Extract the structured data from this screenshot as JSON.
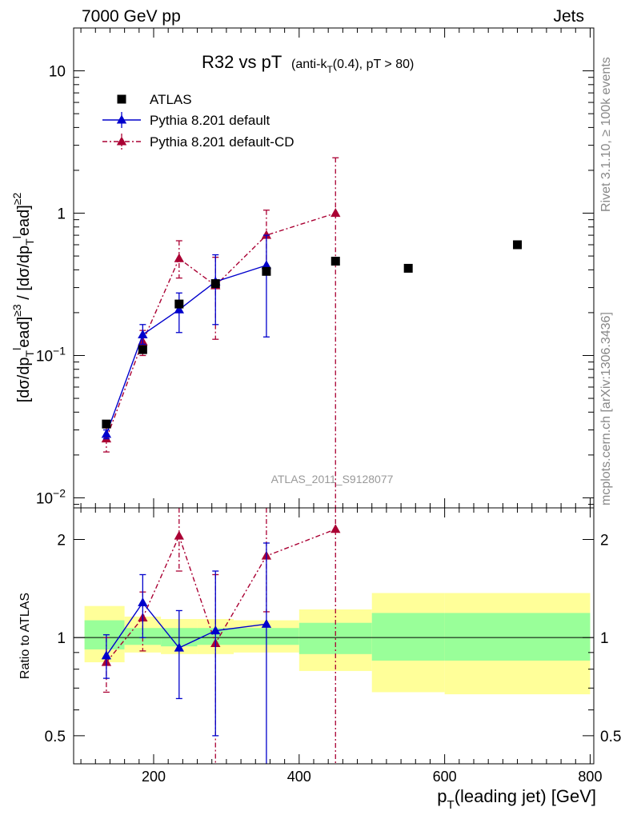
{
  "header": {
    "left": "7000 GeV pp",
    "right": "Jets"
  },
  "title": {
    "main": "R32 vs pT",
    "sub_pre": "(anti-k",
    "sub_sub": "T",
    "sub_post": "(0.4), pT > 80)"
  },
  "side_labels": {
    "rivet": "Rivet 3.1.10, ≥ 100k events",
    "mcplots": "mcplots.cern.ch [arXiv:1306.3436]"
  },
  "watermark": "ATLAS_2011_S9128077",
  "axes": {
    "ylabel_main": "[dσ/dp_T^lead]^{≥3} / [dσ/dp_T^lead]^{≥2}",
    "ylabel_ratio": "Ratio to ATLAS",
    "xlabel_pre": "p",
    "xlabel_sub": "T",
    "xlabel_post": "(leading jet) [GeV]"
  },
  "chart_data": [
    {
      "type": "scatter",
      "panel": "main",
      "yscale": "log",
      "xlim": [
        90,
        805
      ],
      "ylim": [
        0.0085,
        20
      ],
      "y_tick_labels": [
        "10^-2",
        "10^-1",
        "1",
        "10"
      ],
      "legend_position": "top-left",
      "series": [
        {
          "name": "ATLAS",
          "marker": "square",
          "color": "#000000",
          "x": [
            135,
            185,
            235,
            285,
            355,
            450,
            550,
            700
          ],
          "y": [
            0.033,
            0.11,
            0.23,
            0.32,
            0.39,
            0.46,
            0.41,
            0.6
          ]
        },
        {
          "name": "Pythia 8.201 default",
          "marker": "triangle",
          "line": "solid",
          "color": "#0000cc",
          "x": [
            135,
            185,
            235,
            285,
            355
          ],
          "y": [
            0.028,
            0.14,
            0.21,
            0.33,
            0.43
          ],
          "err_lo": [
            0.026,
            0.12,
            0.145,
            0.165,
            0.135
          ],
          "err_hi": [
            0.03,
            0.165,
            0.275,
            0.51,
            0.7
          ]
        },
        {
          "name": "Pythia 8.201 default-CD",
          "marker": "triangle",
          "line": "dashdot",
          "color": "#aa0033",
          "x": [
            135,
            185,
            235,
            285,
            355,
            450
          ],
          "y": [
            0.026,
            0.125,
            0.48,
            0.31,
            0.7,
            1.0
          ],
          "err_lo": [
            0.021,
            0.1,
            0.35,
            0.13,
            0.4,
            0.0085
          ],
          "err_hi": [
            0.031,
            0.15,
            0.64,
            0.49,
            1.05,
            2.45
          ]
        }
      ]
    },
    {
      "type": "scatter",
      "panel": "ratio",
      "yscale": "log",
      "xlim": [
        90,
        805
      ],
      "ylim": [
        0.41,
        2.5
      ],
      "y_tick_labels": [
        "0.5",
        "1",
        "2"
      ],
      "x_tick_labels": [
        "200",
        "400",
        "600",
        "800"
      ],
      "bands": [
        {
          "x0": 105,
          "x1": 160,
          "lo2": 0.84,
          "hi2": 1.25,
          "lo1": 0.92,
          "hi1": 1.13
        },
        {
          "x0": 160,
          "x1": 210,
          "lo2": 0.9,
          "hi2": 1.16,
          "lo1": 0.95,
          "hi1": 1.07
        },
        {
          "x0": 210,
          "x1": 260,
          "lo2": 0.89,
          "hi2": 1.14,
          "lo1": 0.94,
          "hi1": 1.07
        },
        {
          "x0": 260,
          "x1": 310,
          "lo2": 0.89,
          "hi2": 1.14,
          "lo1": 0.95,
          "hi1": 1.07
        },
        {
          "x0": 310,
          "x1": 400,
          "lo2": 0.9,
          "hi2": 1.13,
          "lo1": 0.95,
          "hi1": 1.07
        },
        {
          "x0": 400,
          "x1": 500,
          "lo2": 0.79,
          "hi2": 1.22,
          "lo1": 0.89,
          "hi1": 1.11
        },
        {
          "x0": 500,
          "x1": 600,
          "lo2": 0.68,
          "hi2": 1.37,
          "lo1": 0.85,
          "hi1": 1.19
        },
        {
          "x0": 600,
          "x1": 800,
          "lo2": 0.67,
          "hi2": 1.37,
          "lo1": 0.85,
          "hi1": 1.19
        }
      ],
      "series": [
        {
          "name": "Pythia 8.201 default",
          "marker": "triangle",
          "line": "solid",
          "color": "#0000cc",
          "x": [
            135,
            185,
            235,
            285,
            355
          ],
          "y": [
            0.88,
            1.28,
            0.93,
            1.05,
            1.1
          ],
          "err_lo": [
            0.75,
            1.0,
            0.65,
            0.5,
            0.35
          ],
          "err_hi": [
            1.02,
            1.56,
            1.21,
            1.6,
            1.95
          ]
        },
        {
          "name": "Pythia 8.201 default-CD",
          "marker": "triangle",
          "line": "dashdot",
          "color": "#aa0033",
          "x": [
            135,
            185,
            235,
            285,
            355,
            450
          ],
          "y": [
            0.84,
            1.15,
            2.05,
            0.96,
            1.78,
            2.15
          ],
          "err_lo": [
            0.68,
            0.91,
            1.6,
            0.38,
            1.2,
            0.41
          ],
          "err_hi": [
            1.0,
            1.38,
            2.5,
            1.56,
            2.5,
            2.5
          ]
        }
      ]
    }
  ]
}
